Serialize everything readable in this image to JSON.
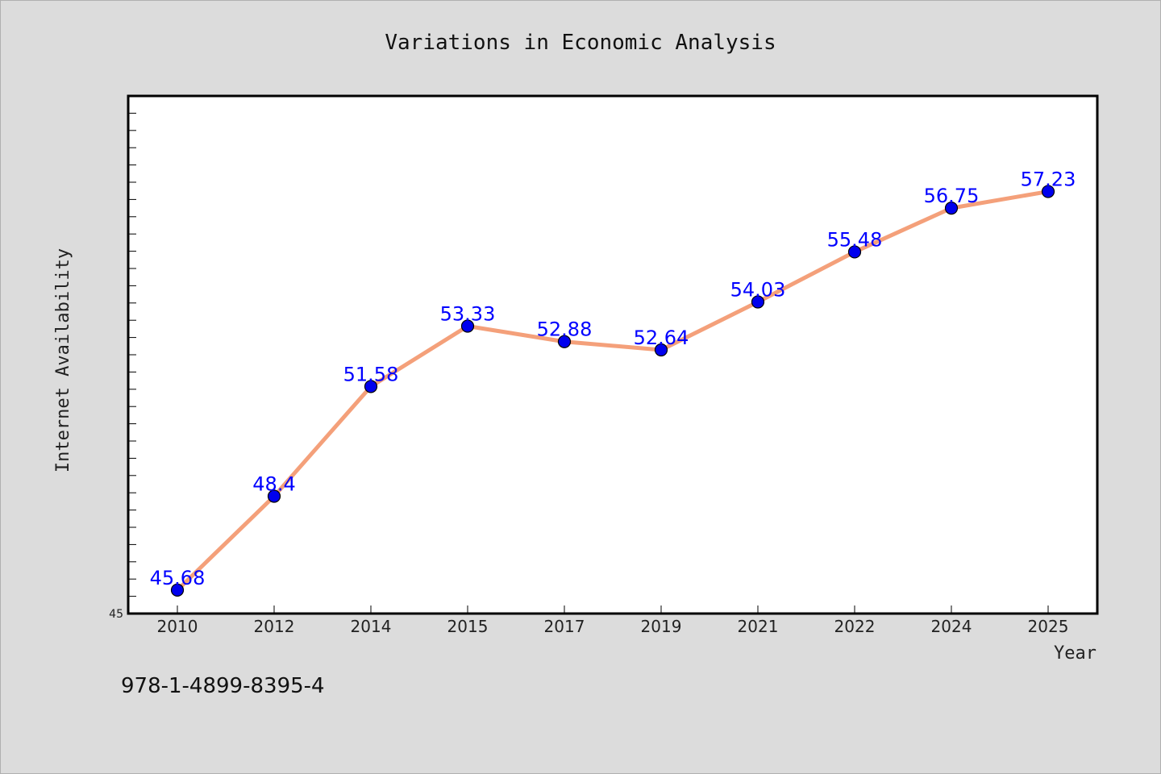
{
  "chart_data": {
    "type": "line",
    "title": "Variations in Economic Analysis",
    "xlabel": "Year",
    "ylabel": "Internet Availability",
    "categories": [
      "2010",
      "2012",
      "2014",
      "2015",
      "2017",
      "2019",
      "2021",
      "2022",
      "2024",
      "2025"
    ],
    "series": [
      {
        "values": [
          45.68,
          48.4,
          51.58,
          53.33,
          52.88,
          52.64,
          54.03,
          55.48,
          56.75,
          57.23
        ]
      }
    ],
    "data_labels": [
      "45.68",
      "48.4",
      "51.58",
      "53.33",
      "52.88",
      "52.64",
      "54.03",
      "55.48",
      "56.75",
      "57.23"
    ],
    "ylim": [
      45,
      60
    ],
    "ytick_labels": [
      "45"
    ],
    "grid": false,
    "colors": {
      "line": "#f4a07a",
      "marker": "#0000ee",
      "data_label": "#0000ff",
      "background": "#dcdcdc",
      "plot_area": "#ffffff"
    }
  },
  "footer": {
    "isbn": "978-1-4899-8395-4"
  }
}
